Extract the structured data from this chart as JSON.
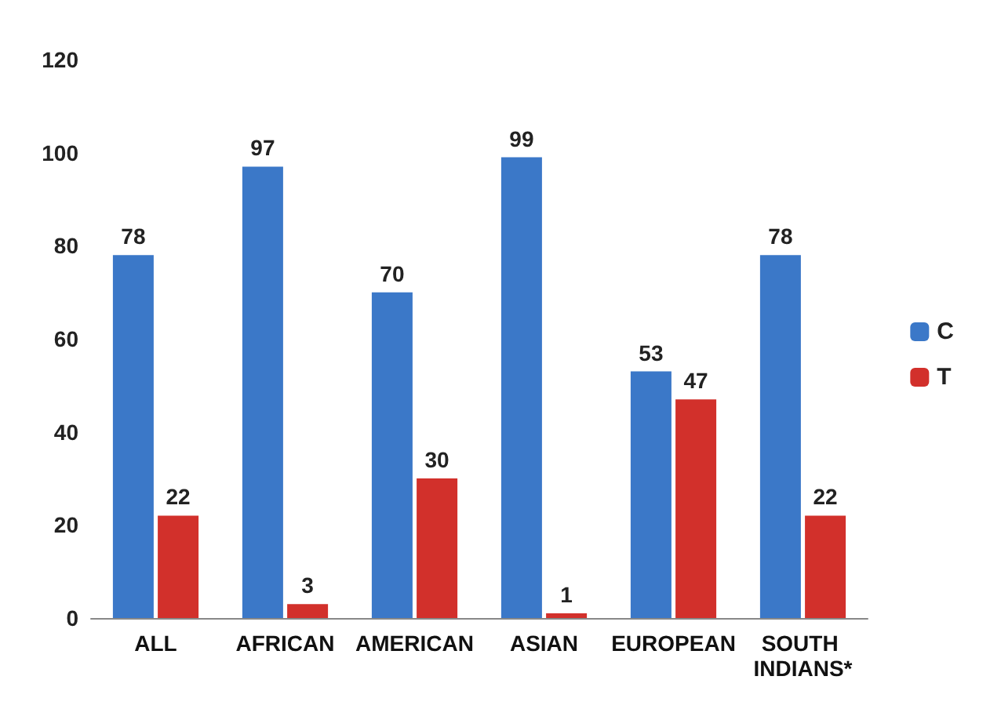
{
  "chart_data": {
    "type": "bar",
    "categories": [
      "ALL",
      "AFRICAN",
      "AMERICAN",
      "ASIAN",
      "EUROPEAN",
      "SOUTH INDIANS*"
    ],
    "series": [
      {
        "name": "C",
        "color": "#3b78c8",
        "values": [
          78,
          97,
          70,
          99,
          53,
          78
        ]
      },
      {
        "name": "T",
        "color": "#d2302b",
        "values": [
          22,
          3,
          30,
          1,
          47,
          22
        ]
      }
    ],
    "ylim": [
      0,
      120
    ],
    "yticks": [
      0,
      20,
      40,
      60,
      80,
      100,
      120
    ],
    "grid": false,
    "legend": "right",
    "data_labels": true
  }
}
